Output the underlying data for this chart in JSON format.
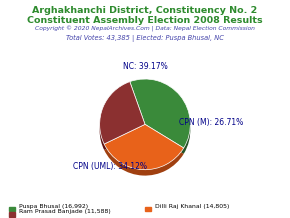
{
  "title_line1": "Arghakhanchi District, Constituency No. 2",
  "title_line2": "Constituent Assembly Election 2008 Results",
  "title_color": "#2e8b2e",
  "copyright_text": "Copyright © 2020 NepalArchives.Com | Data: Nepal Election Commission",
  "copyright_color": "#4444aa",
  "total_votes_text": "Total Votes: 43,385 | Elected: Puspa Bhusal, NC",
  "total_votes_color": "#4444aa",
  "slices": [
    {
      "label": "NC",
      "value": 16992,
      "pct": 39.17,
      "color": "#3a8a3a"
    },
    {
      "label": "CPN (UML)",
      "value": 14805,
      "pct": 34.12,
      "color": "#e8621a"
    },
    {
      "label": "CPN (M)",
      "value": 11588,
      "pct": 26.71,
      "color": "#8b3030"
    }
  ],
  "slice_shadow_colors": [
    "#255225",
    "#a04010",
    "#5a1010"
  ],
  "legend_entries": [
    {
      "label": "Puspa Bhusal (16,992)",
      "color": "#3a8a3a"
    },
    {
      "label": "Dilli Raj Khanal (14,805)",
      "color": "#e8621a"
    },
    {
      "label": "Ram Prasad Banjade (11,588)",
      "color": "#8b3030"
    }
  ],
  "pie_label_color": "#000088",
  "background_color": "#ffffff",
  "startangle": 109.585
}
